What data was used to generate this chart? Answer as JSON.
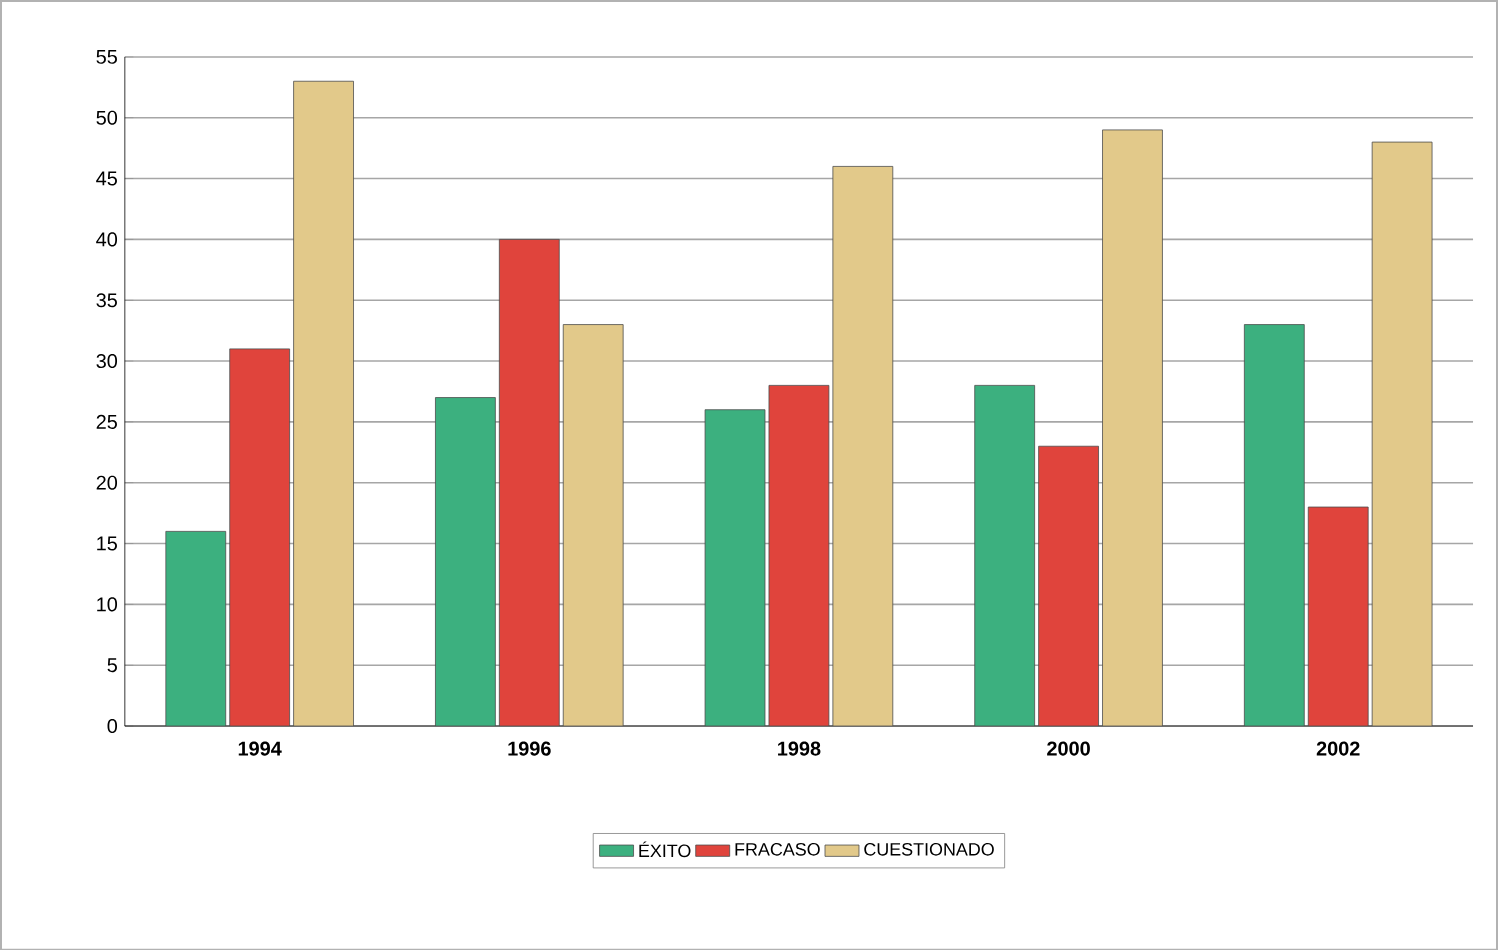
{
  "chart_data": {
    "type": "bar",
    "categories": [
      "1994",
      "1996",
      "1998",
      "2000",
      "2002"
    ],
    "series": [
      {
        "name": "ÉXITO",
        "color": "#3cb07f",
        "values": [
          16,
          27,
          26,
          28,
          33
        ]
      },
      {
        "name": "FRACASO",
        "color": "#e0443c",
        "values": [
          31,
          40,
          28,
          23,
          18
        ]
      },
      {
        "name": "CUESTIONADO",
        "color": "#e2c98a",
        "values": [
          53,
          33,
          46,
          49,
          48
        ]
      }
    ],
    "ylim": [
      0,
      55
    ],
    "yticks": [
      0,
      5,
      10,
      15,
      20,
      25,
      30,
      35,
      40,
      45,
      50,
      55
    ],
    "grid": "y",
    "legend": "bottom"
  }
}
